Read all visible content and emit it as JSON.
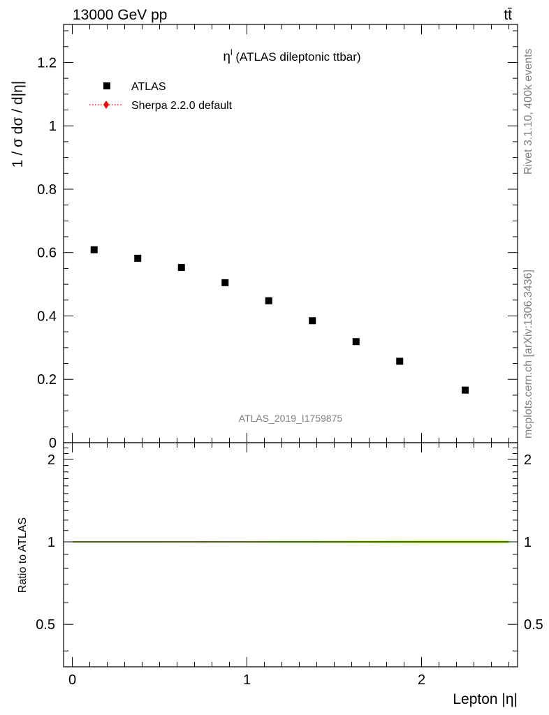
{
  "header": {
    "energy_label": "13000 GeV pp",
    "process_label": "tt̄"
  },
  "side_labels": {
    "rivet": "Rivet 3.1.10,  400k events",
    "mcplots": "mcplots.cern.ch [arXiv:1306.3436]"
  },
  "analysis_label": "ATLAS_2019_I1759875",
  "chart_data": [
    {
      "type": "scatter",
      "title": "η (ATLAS dileptonic ttbar)",
      "title_main": "η",
      "title_sup": "l",
      "title_rest": " (ATLAS dileptonic ttbar)",
      "ylabel": "1 / σ  dσ / d|η|",
      "xlim": [
        -0.05,
        2.55
      ],
      "ylim": [
        0,
        1.32
      ],
      "yticks": [
        0,
        0.2,
        0.4,
        0.6,
        0.8,
        1,
        1.2
      ],
      "ytick_labels": [
        "0",
        "0.2",
        "0.4",
        "0.6",
        "0.8",
        "1",
        "1.2"
      ],
      "legend_placement": "top-left",
      "series": [
        {
          "name": "ATLAS",
          "marker": "square",
          "color": "#000000",
          "x": [
            0.125,
            0.375,
            0.625,
            0.875,
            1.125,
            1.375,
            1.625,
            1.875,
            2.25
          ],
          "y": [
            0.609,
            0.582,
            0.553,
            0.505,
            0.448,
            0.385,
            0.319,
            0.257,
            0.166
          ]
        },
        {
          "name": "Sherpa 2.2.0 default",
          "marker": "diamond",
          "color": "#ff0000",
          "line_style": "dotted",
          "x": [],
          "y": []
        }
      ]
    },
    {
      "type": "line",
      "ylabel": "Ratio to ATLAS",
      "xlabel": "Lepton |η|",
      "xlim": [
        -0.05,
        2.55
      ],
      "ylim": [
        0.35,
        2.3
      ],
      "xticks": [
        0,
        1,
        2
      ],
      "xtick_labels": [
        "0",
        "1",
        "2"
      ],
      "yticks": [
        0.5,
        1,
        2
      ],
      "ytick_labels": [
        "0.5",
        "1",
        "2"
      ],
      "reference_line": 1,
      "band": {
        "color": "#ccff66",
        "x": [
          0,
          0.25,
          0.5,
          0.75,
          1,
          1.25,
          1.5,
          1.75,
          2,
          2.5
        ],
        "low": [
          0.993,
          0.993,
          0.993,
          0.994,
          0.993,
          0.991,
          0.99,
          0.988,
          0.986,
          0.986
        ],
        "high": [
          1.007,
          1.007,
          1.007,
          1.006,
          1.007,
          1.009,
          1.01,
          1.012,
          1.014,
          1.014
        ]
      }
    }
  ]
}
